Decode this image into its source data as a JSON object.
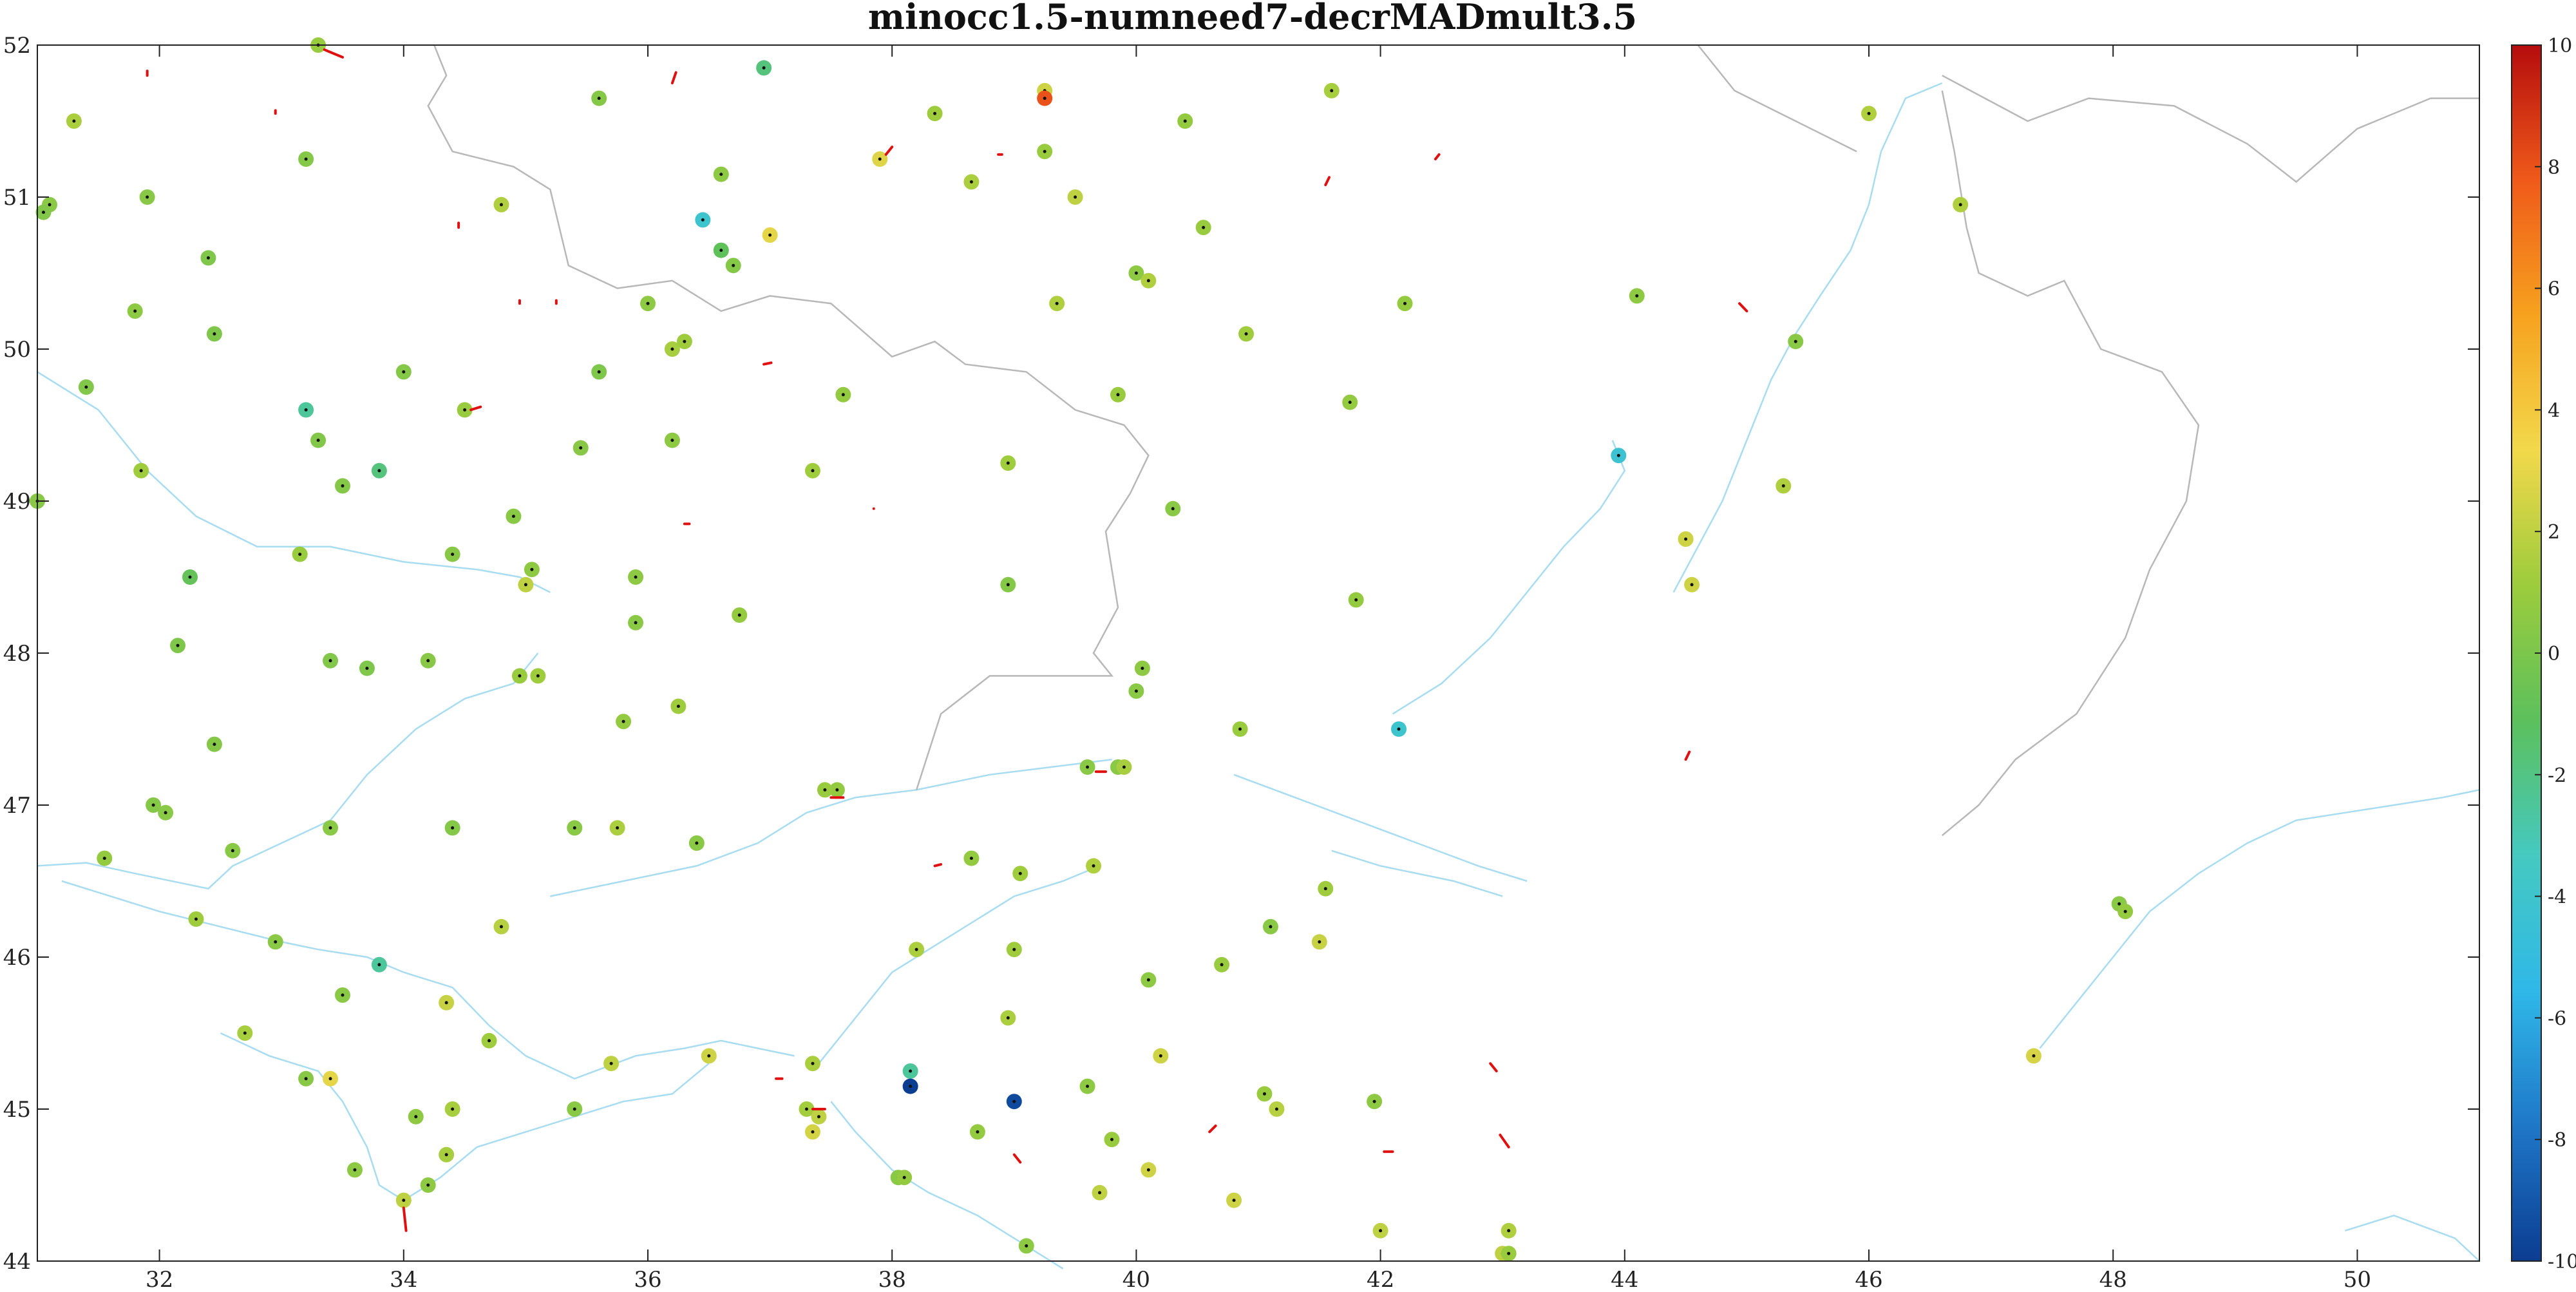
{
  "chart_data": {
    "type": "scatter",
    "title": "minocc1.5-numneed7-decrMADmult3.5",
    "xlabel": "",
    "ylabel": "",
    "xlim": [
      31,
      51
    ],
    "ylim": [
      44,
      52
    ],
    "x_ticks": [
      32,
      34,
      36,
      38,
      40,
      42,
      44,
      46,
      48,
      50
    ],
    "y_ticks": [
      44,
      45,
      46,
      47,
      48,
      49,
      50,
      51,
      52
    ],
    "grid": false,
    "colorbar": {
      "range": [
        -10,
        10
      ],
      "ticks": [
        10,
        8,
        6,
        4,
        2,
        0,
        -2,
        -4,
        -6,
        -8,
        -10
      ],
      "colormap": [
        "#0b3d91",
        "#1f77c8",
        "#2fb8e8",
        "#45c9c0",
        "#5cc05c",
        "#9ccc3c",
        "#f2d84b",
        "#f6a21e",
        "#ef5a1a",
        "#b50d0d"
      ]
    },
    "background_lines": {
      "coast_color": "#a8dcf0",
      "border_color": "#b8b8b8"
    },
    "stations": [
      {
        "x": 33.3,
        "y": 52.0,
        "v": 1.0
      },
      {
        "x": 31.3,
        "y": 51.5,
        "v": 1.5
      },
      {
        "x": 31.1,
        "y": 50.95,
        "v": 0.5
      },
      {
        "x": 31.05,
        "y": 50.9,
        "v": 0.2
      },
      {
        "x": 31.9,
        "y": 51.0,
        "v": 0.4
      },
      {
        "x": 33.2,
        "y": 51.25,
        "v": 0.3
      },
      {
        "x": 32.4,
        "y": 50.6,
        "v": 0.1
      },
      {
        "x": 31.8,
        "y": 50.25,
        "v": 0.6
      },
      {
        "x": 32.45,
        "y": 50.1,
        "v": 0.1
      },
      {
        "x": 31.4,
        "y": 49.75,
        "v": 0.2
      },
      {
        "x": 33.2,
        "y": 49.6,
        "v": -2.5
      },
      {
        "x": 33.3,
        "y": 49.4,
        "v": 0.2
      },
      {
        "x": 31.85,
        "y": 49.2,
        "v": 1.2
      },
      {
        "x": 33.5,
        "y": 49.1,
        "v": 0.3
      },
      {
        "x": 33.8,
        "y": 49.2,
        "v": -1.8
      },
      {
        "x": 31.0,
        "y": 49.0,
        "v": 0.4
      },
      {
        "x": 33.15,
        "y": 48.65,
        "v": 1.0
      },
      {
        "x": 32.25,
        "y": 48.5,
        "v": -0.8
      },
      {
        "x": 32.15,
        "y": 48.05,
        "v": 0.1
      },
      {
        "x": 33.4,
        "y": 47.95,
        "v": 0.2
      },
      {
        "x": 33.7,
        "y": 47.9,
        "v": 0.1
      },
      {
        "x": 34.2,
        "y": 47.95,
        "v": 0.4
      },
      {
        "x": 32.45,
        "y": 47.4,
        "v": 0.3
      },
      {
        "x": 31.95,
        "y": 47.0,
        "v": 0.3
      },
      {
        "x": 32.05,
        "y": 46.95,
        "v": 0.5
      },
      {
        "x": 31.55,
        "y": 46.65,
        "v": 0.8
      },
      {
        "x": 32.6,
        "y": 46.7,
        "v": 0.5
      },
      {
        "x": 33.4,
        "y": 46.85,
        "v": 0.5
      },
      {
        "x": 32.3,
        "y": 46.25,
        "v": 1.2
      },
      {
        "x": 32.95,
        "y": 46.1,
        "v": 0.5
      },
      {
        "x": 33.8,
        "y": 45.95,
        "v": -2.5
      },
      {
        "x": 33.5,
        "y": 45.75,
        "v": 0.5
      },
      {
        "x": 32.7,
        "y": 45.5,
        "v": 1.4
      },
      {
        "x": 33.2,
        "y": 45.2,
        "v": 0.4
      },
      {
        "x": 33.4,
        "y": 45.2,
        "v": 3.0
      },
      {
        "x": 34.1,
        "y": 44.95,
        "v": 0.6
      },
      {
        "x": 33.6,
        "y": 44.6,
        "v": 0.6
      },
      {
        "x": 34.0,
        "y": 44.4,
        "v": 2.0
      },
      {
        "x": 34.2,
        "y": 44.5,
        "v": 0.6
      },
      {
        "x": 35.6,
        "y": 51.65,
        "v": 0.3
      },
      {
        "x": 34.8,
        "y": 50.95,
        "v": 1.6
      },
      {
        "x": 34.5,
        "y": 49.6,
        "v": 1.0
      },
      {
        "x": 34.0,
        "y": 49.85,
        "v": 0.3
      },
      {
        "x": 34.4,
        "y": 48.65,
        "v": 0.4
      },
      {
        "x": 34.9,
        "y": 48.9,
        "v": 0.5
      },
      {
        "x": 35.05,
        "y": 48.55,
        "v": 0.6
      },
      {
        "x": 35.0,
        "y": 48.45,
        "v": 2.0
      },
      {
        "x": 34.95,
        "y": 47.85,
        "v": 1.0
      },
      {
        "x": 35.1,
        "y": 47.85,
        "v": 1.2
      },
      {
        "x": 34.4,
        "y": 46.85,
        "v": 0.3
      },
      {
        "x": 34.35,
        "y": 45.7,
        "v": 2.2
      },
      {
        "x": 34.8,
        "y": 46.2,
        "v": 1.8
      },
      {
        "x": 34.7,
        "y": 45.45,
        "v": 1.2
      },
      {
        "x": 34.4,
        "y": 45.0,
        "v": 1.4
      },
      {
        "x": 34.35,
        "y": 44.7,
        "v": 1.4
      },
      {
        "x": 35.4,
        "y": 45.0,
        "v": 0.5
      },
      {
        "x": 35.4,
        "y": 46.85,
        "v": 0.5
      },
      {
        "x": 35.45,
        "y": 49.35,
        "v": 0.4
      },
      {
        "x": 35.6,
        "y": 49.85,
        "v": 0.1
      },
      {
        "x": 35.75,
        "y": 46.85,
        "v": 1.5
      },
      {
        "x": 35.8,
        "y": 47.55,
        "v": 0.8
      },
      {
        "x": 35.7,
        "y": 45.3,
        "v": 2.0
      },
      {
        "x": 35.9,
        "y": 48.5,
        "v": 0.6
      },
      {
        "x": 36.0,
        "y": 50.3,
        "v": 0.6
      },
      {
        "x": 35.9,
        "y": 48.2,
        "v": 0.5
      },
      {
        "x": 36.2,
        "y": 49.4,
        "v": 0.6
      },
      {
        "x": 36.2,
        "y": 50.0,
        "v": 1.4
      },
      {
        "x": 36.3,
        "y": 50.05,
        "v": 1.2
      },
      {
        "x": 36.25,
        "y": 47.65,
        "v": 1.2
      },
      {
        "x": 36.4,
        "y": 46.75,
        "v": 0.5
      },
      {
        "x": 36.45,
        "y": 50.85,
        "v": -4.0
      },
      {
        "x": 36.6,
        "y": 50.65,
        "v": -1.0
      },
      {
        "x": 36.7,
        "y": 50.55,
        "v": 0.3
      },
      {
        "x": 36.6,
        "y": 51.15,
        "v": 0.6
      },
      {
        "x": 36.75,
        "y": 48.25,
        "v": 0.8
      },
      {
        "x": 36.95,
        "y": 51.85,
        "v": -1.8
      },
      {
        "x": 37.0,
        "y": 50.75,
        "v": 3.0
      },
      {
        "x": 37.35,
        "y": 49.2,
        "v": 1.2
      },
      {
        "x": 36.5,
        "y": 45.35,
        "v": 2.4
      },
      {
        "x": 37.55,
        "y": 47.1,
        "v": 0.8
      },
      {
        "x": 37.45,
        "y": 47.1,
        "v": 1.0
      },
      {
        "x": 37.35,
        "y": 45.3,
        "v": 1.5
      },
      {
        "x": 37.3,
        "y": 45.0,
        "v": 1.3
      },
      {
        "x": 37.4,
        "y": 44.95,
        "v": 2.0
      },
      {
        "x": 37.35,
        "y": 44.85,
        "v": 2.5
      },
      {
        "x": 37.6,
        "y": 49.7,
        "v": 0.8
      },
      {
        "x": 37.9,
        "y": 51.25,
        "v": 2.8
      },
      {
        "x": 38.05,
        "y": 44.55,
        "v": 0.5
      },
      {
        "x": 38.1,
        "y": 44.55,
        "v": 0.8
      },
      {
        "x": 38.15,
        "y": 45.25,
        "v": -2.5
      },
      {
        "x": 38.15,
        "y": 45.15,
        "v": -10.0
      },
      {
        "x": 38.2,
        "y": 46.05,
        "v": 1.5
      },
      {
        "x": 38.35,
        "y": 51.55,
        "v": 1.2
      },
      {
        "x": 38.65,
        "y": 51.1,
        "v": 1.5
      },
      {
        "x": 38.65,
        "y": 46.65,
        "v": 0.8
      },
      {
        "x": 38.7,
        "y": 44.85,
        "v": 0.8
      },
      {
        "x": 38.95,
        "y": 48.45,
        "v": 0.3
      },
      {
        "x": 38.95,
        "y": 49.25,
        "v": 1.2
      },
      {
        "x": 38.95,
        "y": 45.6,
        "v": 1.5
      },
      {
        "x": 39.0,
        "y": 46.05,
        "v": 1.2
      },
      {
        "x": 39.0,
        "y": 45.05,
        "v": -9.5
      },
      {
        "x": 39.05,
        "y": 46.55,
        "v": 1.2
      },
      {
        "x": 39.1,
        "y": 44.1,
        "v": 0.6
      },
      {
        "x": 39.25,
        "y": 51.7,
        "v": 2.4
      },
      {
        "x": 39.25,
        "y": 51.65,
        "v": 8.0
      },
      {
        "x": 39.25,
        "y": 51.3,
        "v": 1.0
      },
      {
        "x": 39.35,
        "y": 50.3,
        "v": 1.6
      },
      {
        "x": 39.5,
        "y": 51.0,
        "v": 2.0
      },
      {
        "x": 39.6,
        "y": 47.25,
        "v": 0.5
      },
      {
        "x": 39.65,
        "y": 46.6,
        "v": 1.6
      },
      {
        "x": 39.6,
        "y": 45.15,
        "v": 0.6
      },
      {
        "x": 39.7,
        "y": 44.45,
        "v": 2.0
      },
      {
        "x": 39.8,
        "y": 44.8,
        "v": 1.0
      },
      {
        "x": 39.85,
        "y": 47.25,
        "v": 0.5
      },
      {
        "x": 39.9,
        "y": 47.25,
        "v": 1.4
      },
      {
        "x": 39.85,
        "y": 49.7,
        "v": 1.0
      },
      {
        "x": 40.0,
        "y": 47.75,
        "v": 0.5
      },
      {
        "x": 40.05,
        "y": 47.9,
        "v": 0.6
      },
      {
        "x": 40.0,
        "y": 50.5,
        "v": 0.6
      },
      {
        "x": 40.1,
        "y": 50.45,
        "v": 1.6
      },
      {
        "x": 40.1,
        "y": 45.85,
        "v": 0.6
      },
      {
        "x": 40.1,
        "y": 44.6,
        "v": 2.4
      },
      {
        "x": 40.2,
        "y": 45.35,
        "v": 2.4
      },
      {
        "x": 40.3,
        "y": 48.95,
        "v": 0.5
      },
      {
        "x": 40.4,
        "y": 51.5,
        "v": 0.8
      },
      {
        "x": 40.55,
        "y": 50.8,
        "v": 1.0
      },
      {
        "x": 40.7,
        "y": 45.95,
        "v": 1.0
      },
      {
        "x": 40.8,
        "y": 44.4,
        "v": 2.4
      },
      {
        "x": 40.85,
        "y": 47.5,
        "v": 1.0
      },
      {
        "x": 40.9,
        "y": 50.1,
        "v": 1.2
      },
      {
        "x": 41.05,
        "y": 45.1,
        "v": 1.0
      },
      {
        "x": 41.1,
        "y": 46.2,
        "v": 0.5
      },
      {
        "x": 41.15,
        "y": 45.0,
        "v": 1.8
      },
      {
        "x": 41.5,
        "y": 46.1,
        "v": 2.2
      },
      {
        "x": 41.55,
        "y": 46.45,
        "v": 1.2
      },
      {
        "x": 41.6,
        "y": 51.7,
        "v": 1.4
      },
      {
        "x": 41.75,
        "y": 49.65,
        "v": 0.8
      },
      {
        "x": 41.8,
        "y": 48.35,
        "v": 0.8
      },
      {
        "x": 41.95,
        "y": 45.05,
        "v": 0.6
      },
      {
        "x": 42.0,
        "y": 44.2,
        "v": 2.0
      },
      {
        "x": 42.2,
        "y": 50.3,
        "v": 0.8
      },
      {
        "x": 42.15,
        "y": 47.5,
        "v": -4.0
      },
      {
        "x": 43.0,
        "y": 44.05,
        "v": 2.0
      },
      {
        "x": 43.05,
        "y": 44.05,
        "v": 1.0
      },
      {
        "x": 43.05,
        "y": 44.2,
        "v": 1.6
      },
      {
        "x": 44.1,
        "y": 50.35,
        "v": 0.6
      },
      {
        "x": 43.95,
        "y": 49.3,
        "v": -4.2
      },
      {
        "x": 44.5,
        "y": 48.75,
        "v": 3.0
      },
      {
        "x": 44.5,
        "y": 48.75,
        "v": 2.4
      },
      {
        "x": 44.55,
        "y": 48.45,
        "v": 2.4
      },
      {
        "x": 45.3,
        "y": 49.1,
        "v": 1.6
      },
      {
        "x": 45.4,
        "y": 50.05,
        "v": 0.5
      },
      {
        "x": 46.0,
        "y": 51.55,
        "v": 1.6
      },
      {
        "x": 46.75,
        "y": 50.95,
        "v": 1.6
      },
      {
        "x": 48.05,
        "y": 46.35,
        "v": 0.5
      },
      {
        "x": 48.1,
        "y": 46.3,
        "v": 0.8
      },
      {
        "x": 47.35,
        "y": 45.35,
        "v": 2.6
      }
    ],
    "vectors": [
      {
        "x": 33.35,
        "y": 51.97,
        "dx": 0.15,
        "dy": -0.05
      },
      {
        "x": 31.9,
        "y": 51.8,
        "dx": 0.0,
        "dy": 0.03
      },
      {
        "x": 32.95,
        "y": 51.55,
        "dx": 0.0,
        "dy": 0.02
      },
      {
        "x": 36.2,
        "y": 51.75,
        "dx": 0.03,
        "dy": 0.07
      },
      {
        "x": 37.95,
        "y": 51.28,
        "dx": 0.05,
        "dy": 0.05
      },
      {
        "x": 38.9,
        "y": 51.28,
        "dx": -0.03,
        "dy": 0.0
      },
      {
        "x": 34.45,
        "y": 50.8,
        "dx": 0.0,
        "dy": 0.03
      },
      {
        "x": 35.25,
        "y": 50.3,
        "dx": 0.0,
        "dy": 0.02
      },
      {
        "x": 36.95,
        "y": 49.9,
        "dx": 0.06,
        "dy": 0.01
      },
      {
        "x": 34.55,
        "y": 49.6,
        "dx": 0.08,
        "dy": 0.02
      },
      {
        "x": 36.3,
        "y": 48.85,
        "dx": 0.04,
        "dy": 0.0
      },
      {
        "x": 37.85,
        "y": 48.95,
        "dx": 0.0,
        "dy": 0.0
      },
      {
        "x": 41.55,
        "y": 51.08,
        "dx": 0.03,
        "dy": 0.05
      },
      {
        "x": 42.45,
        "y": 51.25,
        "dx": 0.03,
        "dy": 0.03
      },
      {
        "x": 45.0,
        "y": 50.25,
        "dx": -0.06,
        "dy": 0.05
      },
      {
        "x": 44.5,
        "y": 47.3,
        "dx": 0.03,
        "dy": 0.05
      },
      {
        "x": 37.6,
        "y": 47.05,
        "dx": -0.1,
        "dy": 0.0
      },
      {
        "x": 39.75,
        "y": 47.22,
        "dx": -0.08,
        "dy": 0.0
      },
      {
        "x": 38.35,
        "y": 46.6,
        "dx": 0.05,
        "dy": 0.01
      },
      {
        "x": 37.45,
        "y": 45.0,
        "dx": -0.1,
        "dy": 0.0
      },
      {
        "x": 37.05,
        "y": 45.2,
        "dx": 0.05,
        "dy": 0.0
      },
      {
        "x": 39.0,
        "y": 44.7,
        "dx": 0.05,
        "dy": -0.05
      },
      {
        "x": 40.6,
        "y": 44.85,
        "dx": 0.05,
        "dy": 0.04
      },
      {
        "x": 42.1,
        "y": 44.72,
        "dx": -0.07,
        "dy": 0.0
      },
      {
        "x": 42.95,
        "y": 45.25,
        "dx": -0.05,
        "dy": 0.05
      },
      {
        "x": 43.05,
        "y": 44.75,
        "dx": -0.07,
        "dy": 0.08
      },
      {
        "x": 34.0,
        "y": 44.35,
        "dx": 0.02,
        "dy": -0.15
      },
      {
        "x": 34.95,
        "y": 50.3,
        "dx": 0.0,
        "dy": 0.02
      }
    ]
  }
}
